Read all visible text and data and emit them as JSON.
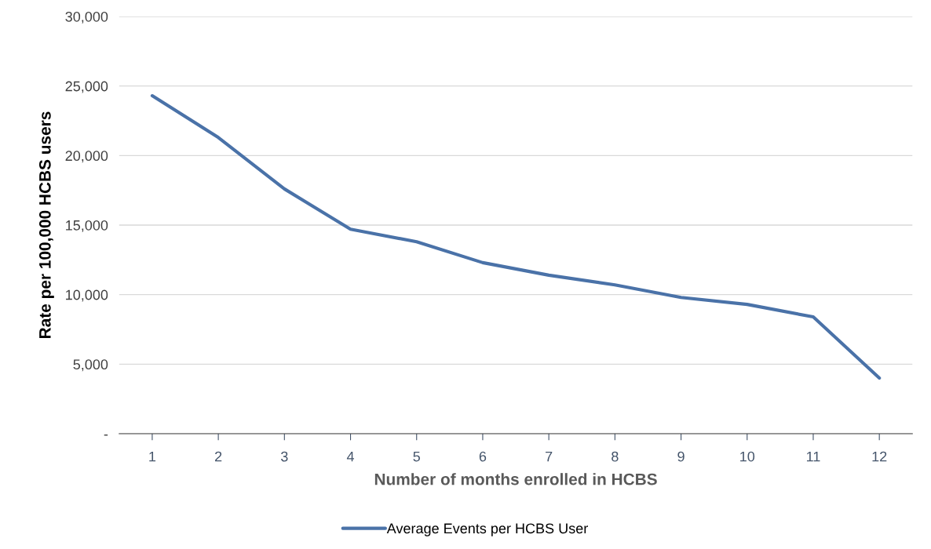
{
  "chart_data": {
    "type": "line",
    "xlabel": "Number of months enrolled in HCBS",
    "ylabel": "Rate per 100,000 HCBS users",
    "categories": [
      "1",
      "2",
      "3",
      "4",
      "5",
      "6",
      "7",
      "8",
      "9",
      "10",
      "11",
      "12"
    ],
    "series": [
      {
        "name": "Average Events per HCBS User",
        "color": "#4a72a8",
        "values": [
          24300,
          21300,
          17600,
          14700,
          13800,
          12300,
          11400,
          10700,
          9800,
          9300,
          8400,
          4000
        ]
      }
    ],
    "ylim": [
      0,
      30000
    ],
    "yticks": [
      {
        "value": 0,
        "label": "-"
      },
      {
        "value": 5000,
        "label": "5,000"
      },
      {
        "value": 10000,
        "label": "10,000"
      },
      {
        "value": 15000,
        "label": "15,000"
      },
      {
        "value": 20000,
        "label": "20,000"
      },
      {
        "value": 25000,
        "label": "25,000"
      },
      {
        "value": 30000,
        "label": "30,000"
      }
    ],
    "grid": "y",
    "legend": "bottom",
    "marker": "none",
    "line_style": "solid"
  }
}
